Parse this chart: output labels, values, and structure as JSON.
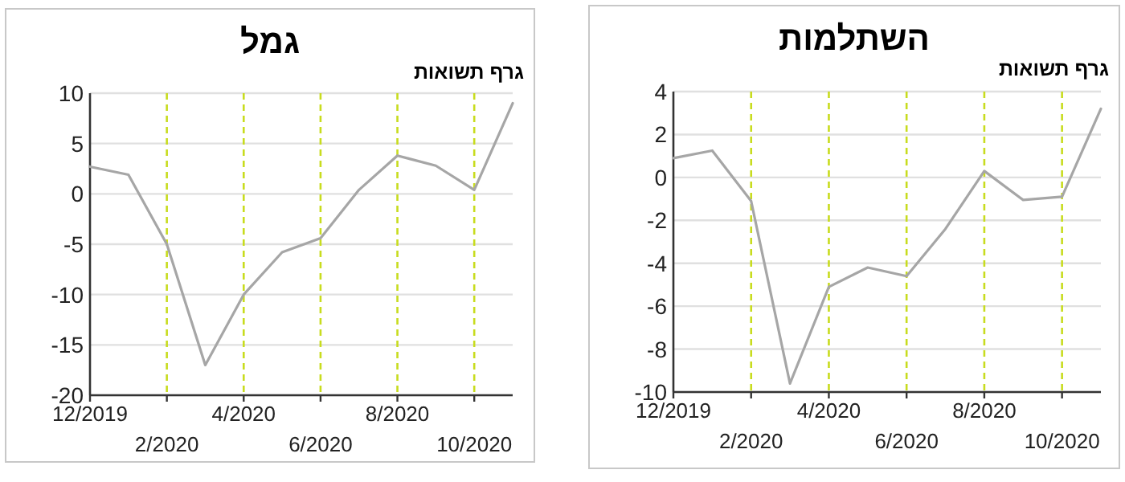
{
  "chart_data": [
    {
      "type": "line",
      "title": "גמל",
      "subtitle": "גרף תשואות",
      "categories": [
        "12/2019",
        null,
        "2/2020",
        null,
        "4/2020",
        null,
        "6/2020",
        null,
        "8/2020",
        null,
        "10/2020",
        null
      ],
      "series": [
        {
          "color": "#a6a6a6",
          "values": [
            2.7,
            1.9,
            -5,
            -17,
            -10,
            -5.8,
            -4.4,
            0.4,
            3.8,
            2.8,
            0.4,
            9
          ]
        }
      ],
      "ylim": [
        -20,
        10
      ],
      "yticks": [
        -20,
        -15,
        -10,
        -5,
        0,
        5,
        10
      ],
      "grid": "y",
      "marker": "none",
      "line_style": "solid",
      "ref_lines": [
        {
          "axis": "x",
          "value": "2/2020",
          "color": "#c8dc1e",
          "line_style": "dashed"
        },
        {
          "axis": "x",
          "value": "4/2020",
          "color": "#c8dc1e",
          "line_style": "dashed"
        },
        {
          "axis": "x",
          "value": "6/2020",
          "color": "#c8dc1e",
          "line_style": "dashed"
        },
        {
          "axis": "x",
          "value": "8/2020",
          "color": "#c8dc1e",
          "line_style": "dashed"
        },
        {
          "axis": "x",
          "value": "10/2020",
          "color": "#c8dc1e",
          "line_style": "dashed"
        }
      ]
    },
    {
      "type": "line",
      "title": "השתלמות",
      "subtitle": "גרף תשואות",
      "categories": [
        "12/2019",
        null,
        "2/2020",
        null,
        "4/2020",
        null,
        "6/2020",
        null,
        "8/2020",
        null,
        "10/2020",
        null
      ],
      "series": [
        {
          "color": "#a6a6a6",
          "values": [
            0.9,
            1.25,
            -1.1,
            -9.6,
            -5.1,
            -4.2,
            -4.6,
            -2.4,
            0.3,
            -1.05,
            -0.9,
            3.2
          ]
        }
      ],
      "ylim": [
        -10,
        4
      ],
      "yticks": [
        -10,
        -8,
        -6,
        -4,
        -2,
        0,
        2,
        4
      ],
      "grid": "y",
      "marker": "none",
      "line_style": "solid",
      "ref_lines": [
        {
          "axis": "x",
          "value": "2/2020",
          "color": "#c8dc1e",
          "line_style": "dashed"
        },
        {
          "axis": "x",
          "value": "4/2020",
          "color": "#c8dc1e",
          "line_style": "dashed"
        },
        {
          "axis": "x",
          "value": "6/2020",
          "color": "#c8dc1e",
          "line_style": "dashed"
        },
        {
          "axis": "x",
          "value": "8/2020",
          "color": "#c8dc1e",
          "line_style": "dashed"
        },
        {
          "axis": "x",
          "value": "10/2020",
          "color": "#c8dc1e",
          "line_style": "dashed"
        }
      ]
    }
  ]
}
